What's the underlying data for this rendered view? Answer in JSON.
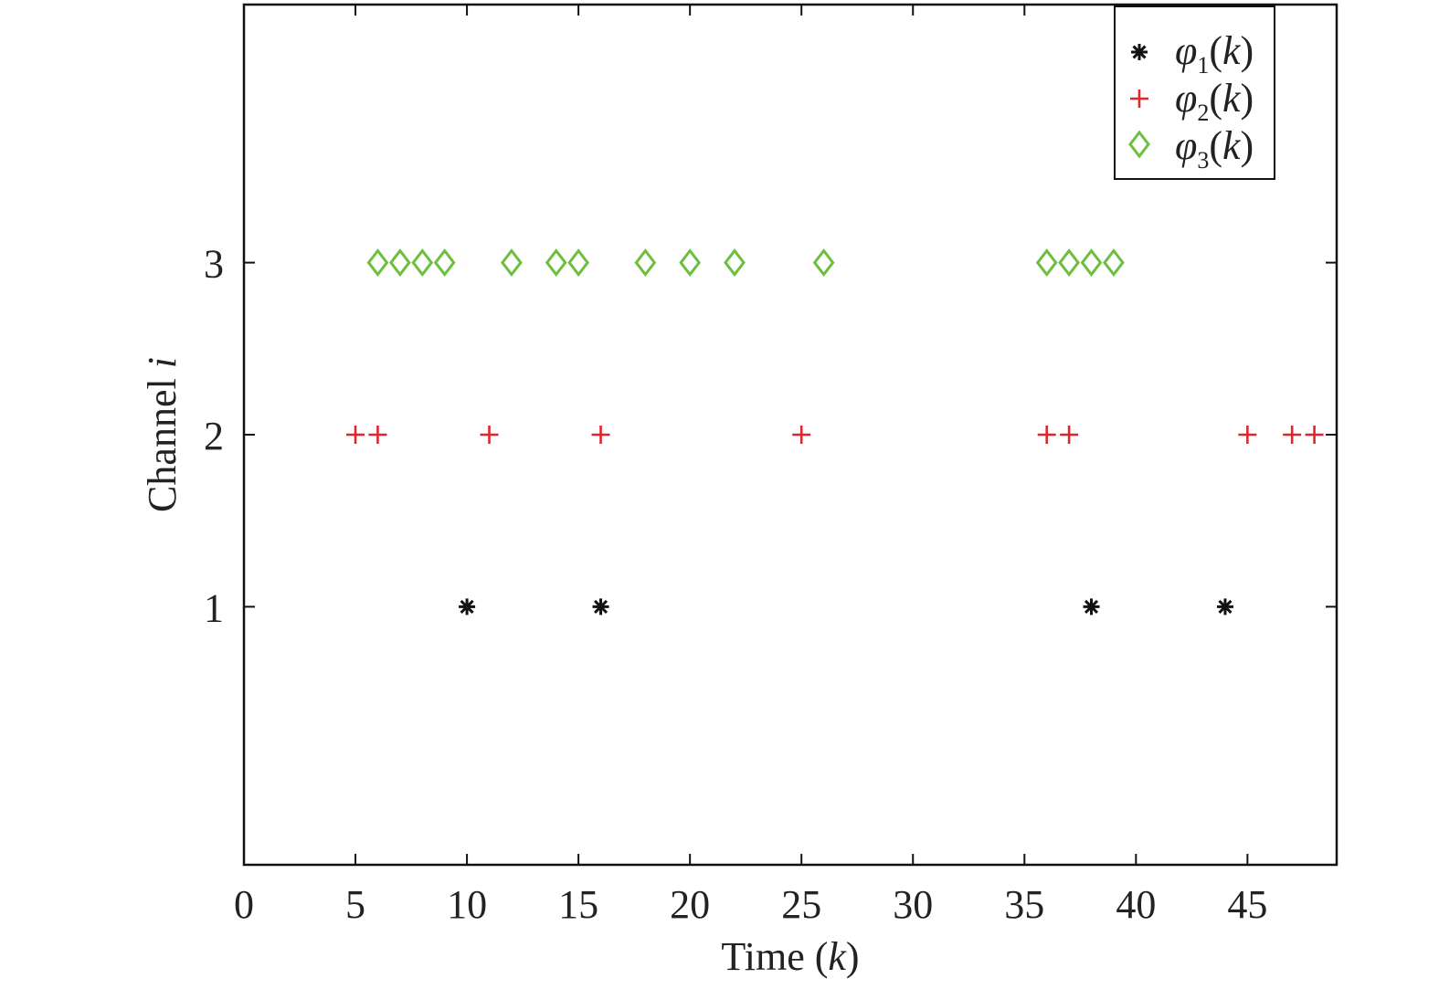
{
  "chart_data": {
    "type": "scatter",
    "xlabel": {
      "prefix": "Time (",
      "var": "k",
      "suffix": ")"
    },
    "ylabel": {
      "prefix": "Channel ",
      "var": "i"
    },
    "xlim": [
      0,
      49
    ],
    "ylim": [
      -0.5,
      4.5
    ],
    "xticks": [
      0,
      5,
      10,
      15,
      20,
      25,
      30,
      35,
      40,
      45
    ],
    "yticks": [
      1,
      2,
      3
    ],
    "grid": false,
    "legend_position": "top-right",
    "series": [
      {
        "name": "φ1(k)",
        "legend": {
          "base": "φ",
          "sub": "1",
          "arg": "k"
        },
        "marker": "asterisk",
        "color": "#111111",
        "y": 1,
        "x": [
          10,
          16,
          38,
          44
        ]
      },
      {
        "name": "φ2(k)",
        "legend": {
          "base": "φ",
          "sub": "2",
          "arg": "k"
        },
        "marker": "plus",
        "color": "#e0262c",
        "y": 2,
        "x": [
          5,
          6,
          11,
          16,
          25,
          36,
          37,
          45,
          47,
          48
        ]
      },
      {
        "name": "φ3(k)",
        "legend": {
          "base": "φ",
          "sub": "3",
          "arg": "k"
        },
        "marker": "diamond",
        "color": "#6dbf3f",
        "y": 3,
        "x": [
          6,
          7,
          8,
          9,
          12,
          14,
          15,
          18,
          20,
          22,
          26,
          36,
          37,
          38,
          39
        ]
      }
    ]
  }
}
